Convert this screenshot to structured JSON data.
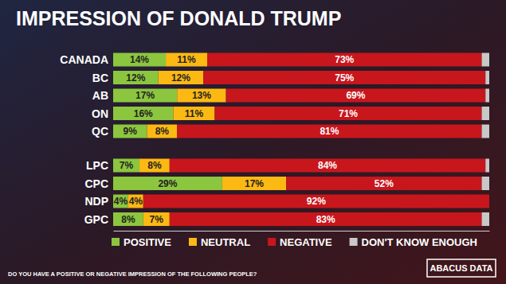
{
  "chart_data": {
    "type": "bar",
    "orientation": "horizontal",
    "stacked": true,
    "data_labels": true,
    "tick_labels": "y",
    "legend": "bottom",
    "title": "IMPRESSION OF DONALD TRUMP",
    "categories": [
      "CANADA",
      "BC",
      "AB",
      "ON",
      "QC",
      "LPC",
      "CPC",
      "NDP",
      "GPC"
    ],
    "xlim": [
      0,
      100
    ],
    "series": [
      {
        "name": "POSITIVE",
        "color": "#8cc63f",
        "values": [
          14,
          12,
          17,
          16,
          9,
          7,
          29,
          4,
          8
        ],
        "value_labels": [
          "14%",
          "12%",
          "17%",
          "16%",
          "9%",
          "7%",
          "29%",
          "4%",
          "8%"
        ]
      },
      {
        "name": "NEUTRAL",
        "color": "#fdb913",
        "values": [
          11,
          12,
          13,
          11,
          8,
          8,
          17,
          4,
          7
        ],
        "value_labels": [
          "11%",
          "12%",
          "13%",
          "11%",
          "8%",
          "8%",
          "17%",
          "4%",
          "7%"
        ]
      },
      {
        "name": "NEGATIVE",
        "color": "#c8161d",
        "values": [
          73,
          75,
          69,
          71,
          81,
          84,
          52,
          92,
          83
        ],
        "value_labels": [
          "73%",
          "75%",
          "69%",
          "71%",
          "81%",
          "84%",
          "52%",
          "92%",
          "83%"
        ]
      },
      {
        "name": "DON'T KNOW ENOUGH",
        "color": "#c8c8c8",
        "values": [
          2,
          1,
          1,
          2,
          2,
          1,
          2,
          0,
          2
        ],
        "value_labels": [
          null,
          null,
          null,
          null,
          null,
          null,
          null,
          null,
          null
        ]
      }
    ],
    "annotations": [
      "DO YOU HAVE A POSITIVE OR NEGATIVE IMPRESSION OF THE FOLLOWING PEOPLE?",
      "ABACUS DATA"
    ]
  }
}
